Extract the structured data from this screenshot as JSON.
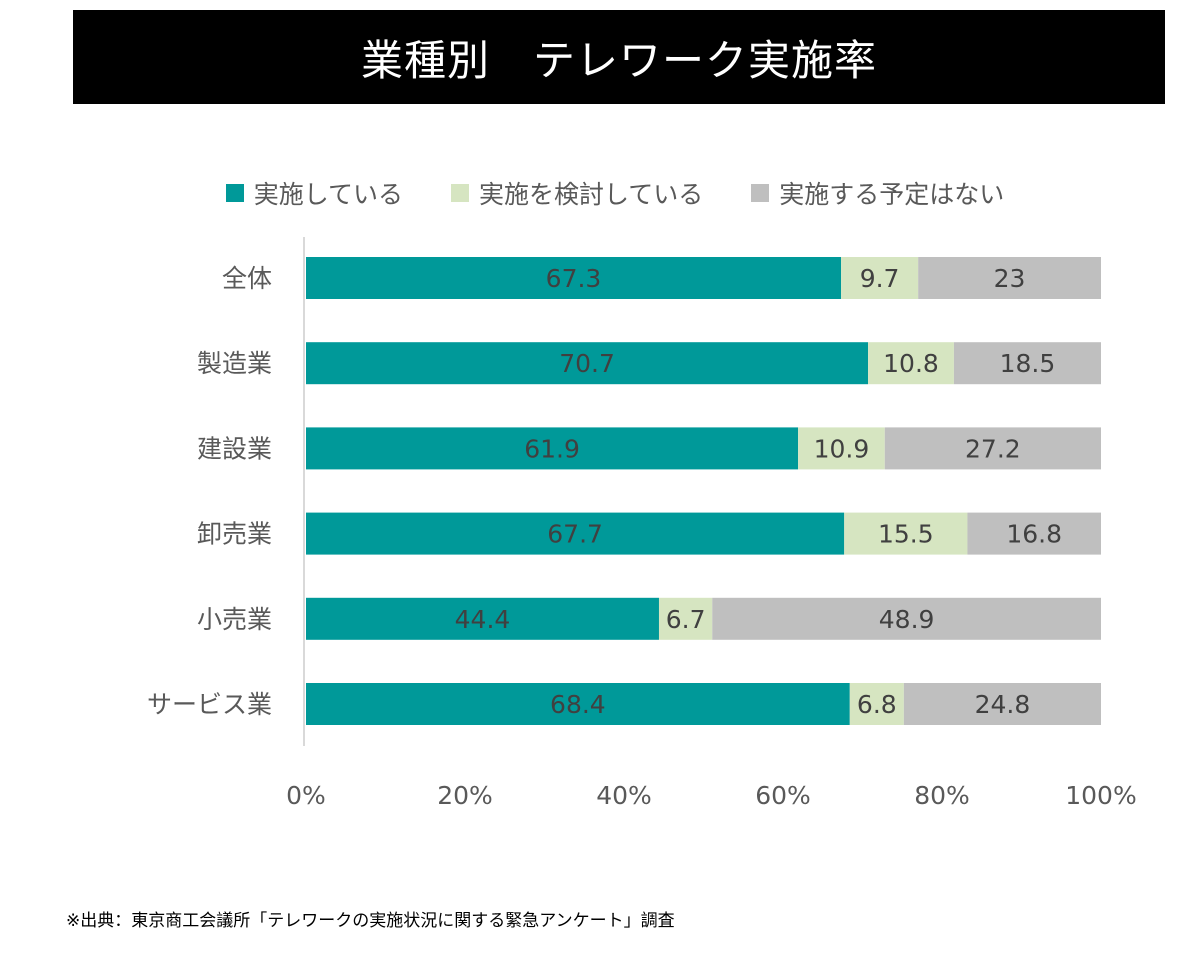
{
  "chart_data": {
    "type": "bar",
    "orientation": "horizontal",
    "stacked": true,
    "percent": true,
    "title": "業種別　テレワーク実施率",
    "categories": [
      "全体",
      "製造業",
      "建設業",
      "卸売業",
      "小売業",
      "サービス業"
    ],
    "series": [
      {
        "name": "実施している",
        "color": "#009999",
        "values": [
          67.3,
          70.7,
          61.9,
          67.7,
          44.4,
          68.4
        ]
      },
      {
        "name": "実施を検討している",
        "color": "#d6e5c1",
        "values": [
          9.7,
          10.8,
          10.9,
          15.5,
          6.7,
          6.8
        ]
      },
      {
        "name": "実施する予定はない",
        "color": "#bfbfbf",
        "values": [
          23,
          18.5,
          27.2,
          16.8,
          48.9,
          24.8
        ]
      }
    ],
    "data_labels": [
      [
        "67.3",
        "9.7",
        "23"
      ],
      [
        "70.7",
        "10.8",
        "18.5"
      ],
      [
        "61.9",
        "10.9",
        "27.2"
      ],
      [
        "67.7",
        "15.5",
        "16.8"
      ],
      [
        "44.4",
        "6.7",
        "48.9"
      ],
      [
        "68.4",
        "6.8",
        "24.8"
      ]
    ],
    "xlim": [
      0,
      100
    ],
    "xticks": [
      "0%",
      "20%",
      "40%",
      "60%",
      "80%",
      "100%"
    ],
    "legend": "top",
    "grid": false
  },
  "footnote": "※出典：東京商工会議所「テレワークの実施状況に関する緊急アンケート」調査"
}
